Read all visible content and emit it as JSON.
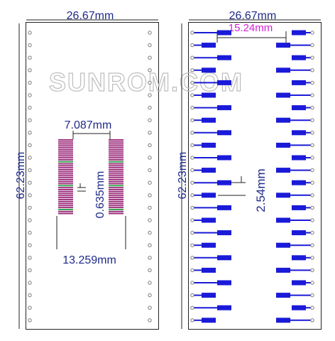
{
  "left_board": {
    "width_label": "26.67mm",
    "height_label": "62.23mm",
    "pad_span_label": "7.087mm",
    "pad_pitch_label": "0.635mm",
    "overall_span_label": "13.259mm"
  },
  "right_board": {
    "width_label": "26.67mm",
    "height_label": "62.23mm",
    "row_span_label": "15.24mm",
    "pin_pitch_label": "2.54mm"
  },
  "watermark": "SUNROM.COM",
  "colors": {
    "board_outline": "#222222",
    "dimension_text": "#1f2a8a",
    "row_span_text": "#d61fd6",
    "copper_pad": "#1a1ad8",
    "fine_pitch_pad": "#9b2c7a",
    "fine_pitch_stripe": "#2fa04a",
    "edge_hole": "#7a7a7a"
  }
}
